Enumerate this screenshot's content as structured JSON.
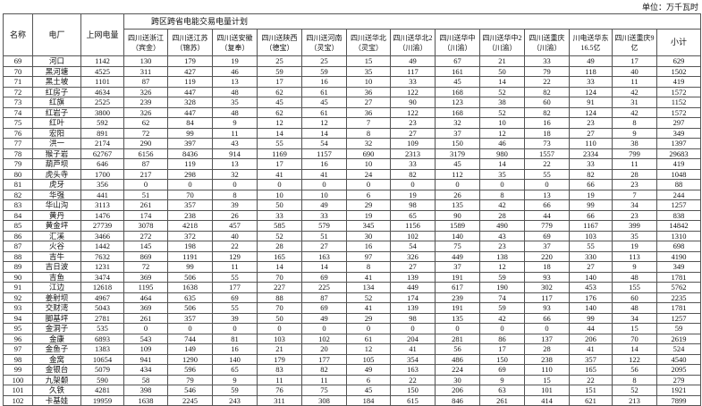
{
  "unit_label": "单位：万千瓦时",
  "headers": {
    "no": "名称",
    "plant": "电厂",
    "grid": "上网电量",
    "group": "跨区跨省电能交易电量计划",
    "cols": [
      "四川送浙江（宾金）",
      "四川送江苏（锦苏）",
      "四川送安徽（复奉）",
      "四川送陕西（德宝）",
      "四川送河南（灵宝）",
      "四川送华北（灵宝）",
      "四川送华北2（川渝）",
      "四川送华中（川渝）",
      "四川送华中2（川渝）",
      "四川送重庆（川渝）",
      "川电送华东16.5亿",
      "四川送重庆9亿",
      "小计"
    ]
  },
  "rows": [
    [
      "69",
      "河口",
      "1142",
      "130",
      "179",
      "19",
      "25",
      "25",
      "15",
      "49",
      "67",
      "21",
      "33",
      "49",
      "17",
      "629"
    ],
    [
      "70",
      "黑河塘",
      "4525",
      "311",
      "427",
      "46",
      "59",
      "59",
      "35",
      "117",
      "161",
      "50",
      "79",
      "118",
      "40",
      "1502"
    ],
    [
      "71",
      "黑土坡",
      "1101",
      "87",
      "119",
      "13",
      "17",
      "16",
      "10",
      "33",
      "45",
      "14",
      "22",
      "33",
      "11",
      "419"
    ],
    [
      "72",
      "红房子",
      "4634",
      "326",
      "447",
      "48",
      "62",
      "61",
      "36",
      "122",
      "168",
      "52",
      "82",
      "124",
      "42",
      "1572"
    ],
    [
      "73",
      "红旗",
      "2525",
      "239",
      "328",
      "35",
      "45",
      "45",
      "27",
      "90",
      "123",
      "38",
      "60",
      "91",
      "31",
      "1152"
    ],
    [
      "74",
      "红岩子",
      "3800",
      "326",
      "447",
      "48",
      "62",
      "61",
      "36",
      "122",
      "168",
      "52",
      "82",
      "124",
      "42",
      "1572"
    ],
    [
      "75",
      "红叶",
      "592",
      "62",
      "84",
      "9",
      "12",
      "12",
      "7",
      "23",
      "32",
      "10",
      "16",
      "23",
      "8",
      "297"
    ],
    [
      "76",
      "宏阳",
      "891",
      "72",
      "99",
      "11",
      "14",
      "14",
      "8",
      "27",
      "37",
      "12",
      "18",
      "27",
      "9",
      "349"
    ],
    [
      "77",
      "洪一",
      "2174",
      "290",
      "397",
      "43",
      "55",
      "54",
      "32",
      "109",
      "150",
      "46",
      "73",
      "110",
      "38",
      "1397"
    ],
    [
      "78",
      "猴子岩",
      "62767",
      "6156",
      "8436",
      "914",
      "1169",
      "1157",
      "690",
      "2313",
      "3179",
      "980",
      "1557",
      "2334",
      "799",
      "29683"
    ],
    [
      "79",
      "葫芦坝",
      "646",
      "87",
      "119",
      "13",
      "17",
      "16",
      "10",
      "33",
      "45",
      "14",
      "22",
      "33",
      "11",
      "419"
    ],
    [
      "80",
      "虎头寺",
      "1700",
      "217",
      "298",
      "32",
      "41",
      "41",
      "24",
      "82",
      "112",
      "35",
      "55",
      "82",
      "28",
      "1048"
    ],
    [
      "81",
      "虎牙",
      "356",
      "0",
      "0",
      "0",
      "0",
      "0",
      "0",
      "0",
      "0",
      "0",
      "0",
      "66",
      "23",
      "88"
    ],
    [
      "82",
      "华强",
      "441",
      "51",
      "70",
      "8",
      "10",
      "10",
      "6",
      "19",
      "26",
      "8",
      "13",
      "19",
      "7",
      "244"
    ],
    [
      "83",
      "华山沟",
      "3113",
      "261",
      "357",
      "39",
      "50",
      "49",
      "29",
      "98",
      "135",
      "42",
      "66",
      "99",
      "34",
      "1257"
    ],
    [
      "84",
      "黄丹",
      "1476",
      "174",
      "238",
      "26",
      "33",
      "33",
      "19",
      "65",
      "90",
      "28",
      "44",
      "66",
      "23",
      "838"
    ],
    [
      "85",
      "黄金坪",
      "27739",
      "3078",
      "4218",
      "457",
      "585",
      "579",
      "345",
      "1156",
      "1589",
      "490",
      "779",
      "1167",
      "399",
      "14842"
    ],
    [
      "86",
      "汇溪",
      "3466",
      "272",
      "372",
      "40",
      "52",
      "51",
      "30",
      "102",
      "140",
      "43",
      "69",
      "103",
      "35",
      "1310"
    ],
    [
      "87",
      "火谷",
      "1442",
      "145",
      "198",
      "22",
      "28",
      "27",
      "16",
      "54",
      "75",
      "23",
      "37",
      "55",
      "19",
      "698"
    ],
    [
      "88",
      "吉牛",
      "7632",
      "869",
      "1191",
      "129",
      "165",
      "163",
      "97",
      "326",
      "449",
      "138",
      "220",
      "330",
      "113",
      "4190"
    ],
    [
      "89",
      "吉日波",
      "1231",
      "72",
      "99",
      "11",
      "14",
      "14",
      "8",
      "27",
      "37",
      "12",
      "18",
      "27",
      "9",
      "349"
    ],
    [
      "90",
      "吉鱼",
      "3474",
      "369",
      "506",
      "55",
      "70",
      "69",
      "41",
      "139",
      "191",
      "59",
      "93",
      "140",
      "48",
      "1781"
    ],
    [
      "91",
      "江边",
      "12618",
      "1195",
      "1638",
      "177",
      "227",
      "225",
      "134",
      "449",
      "617",
      "190",
      "302",
      "453",
      "155",
      "5762"
    ],
    [
      "92",
      "姜射坝",
      "4967",
      "464",
      "635",
      "69",
      "88",
      "87",
      "52",
      "174",
      "239",
      "74",
      "117",
      "176",
      "60",
      "2235"
    ],
    [
      "93",
      "交财湾",
      "5043",
      "369",
      "506",
      "55",
      "70",
      "69",
      "41",
      "139",
      "191",
      "59",
      "93",
      "140",
      "48",
      "1781"
    ],
    [
      "94",
      "脚基坪",
      "2781",
      "261",
      "357",
      "39",
      "50",
      "49",
      "29",
      "98",
      "135",
      "42",
      "66",
      "99",
      "34",
      "1257"
    ],
    [
      "95",
      "金洞子",
      "535",
      "0",
      "0",
      "0",
      "0",
      "0",
      "0",
      "0",
      "0",
      "0",
      "0",
      "44",
      "15",
      "59"
    ],
    [
      "96",
      "金康",
      "6893",
      "543",
      "744",
      "81",
      "103",
      "102",
      "61",
      "204",
      "281",
      "86",
      "137",
      "206",
      "70",
      "2619"
    ],
    [
      "97",
      "金鱼子",
      "1383",
      "109",
      "149",
      "16",
      "21",
      "20",
      "12",
      "41",
      "56",
      "17",
      "28",
      "41",
      "14",
      "524"
    ],
    [
      "98",
      "金窝",
      "10654",
      "941",
      "1290",
      "140",
      "179",
      "177",
      "105",
      "354",
      "486",
      "150",
      "238",
      "357",
      "122",
      "4540"
    ],
    [
      "99",
      "金银台",
      "5079",
      "434",
      "596",
      "65",
      "83",
      "82",
      "49",
      "163",
      "224",
      "69",
      "110",
      "165",
      "56",
      "2095"
    ],
    [
      "100",
      "九架颡",
      "590",
      "58",
      "79",
      "9",
      "11",
      "11",
      "6",
      "22",
      "30",
      "9",
      "15",
      "22",
      "8",
      "279"
    ],
    [
      "101",
      "久铁",
      "4281",
      "398",
      "546",
      "59",
      "76",
      "75",
      "45",
      "150",
      "206",
      "63",
      "101",
      "151",
      "52",
      "1921"
    ],
    [
      "102",
      "卡基娃",
      "19959",
      "1638",
      "2245",
      "243",
      "311",
      "308",
      "184",
      "615",
      "846",
      "261",
      "414",
      "621",
      "213",
      "7899"
    ]
  ]
}
